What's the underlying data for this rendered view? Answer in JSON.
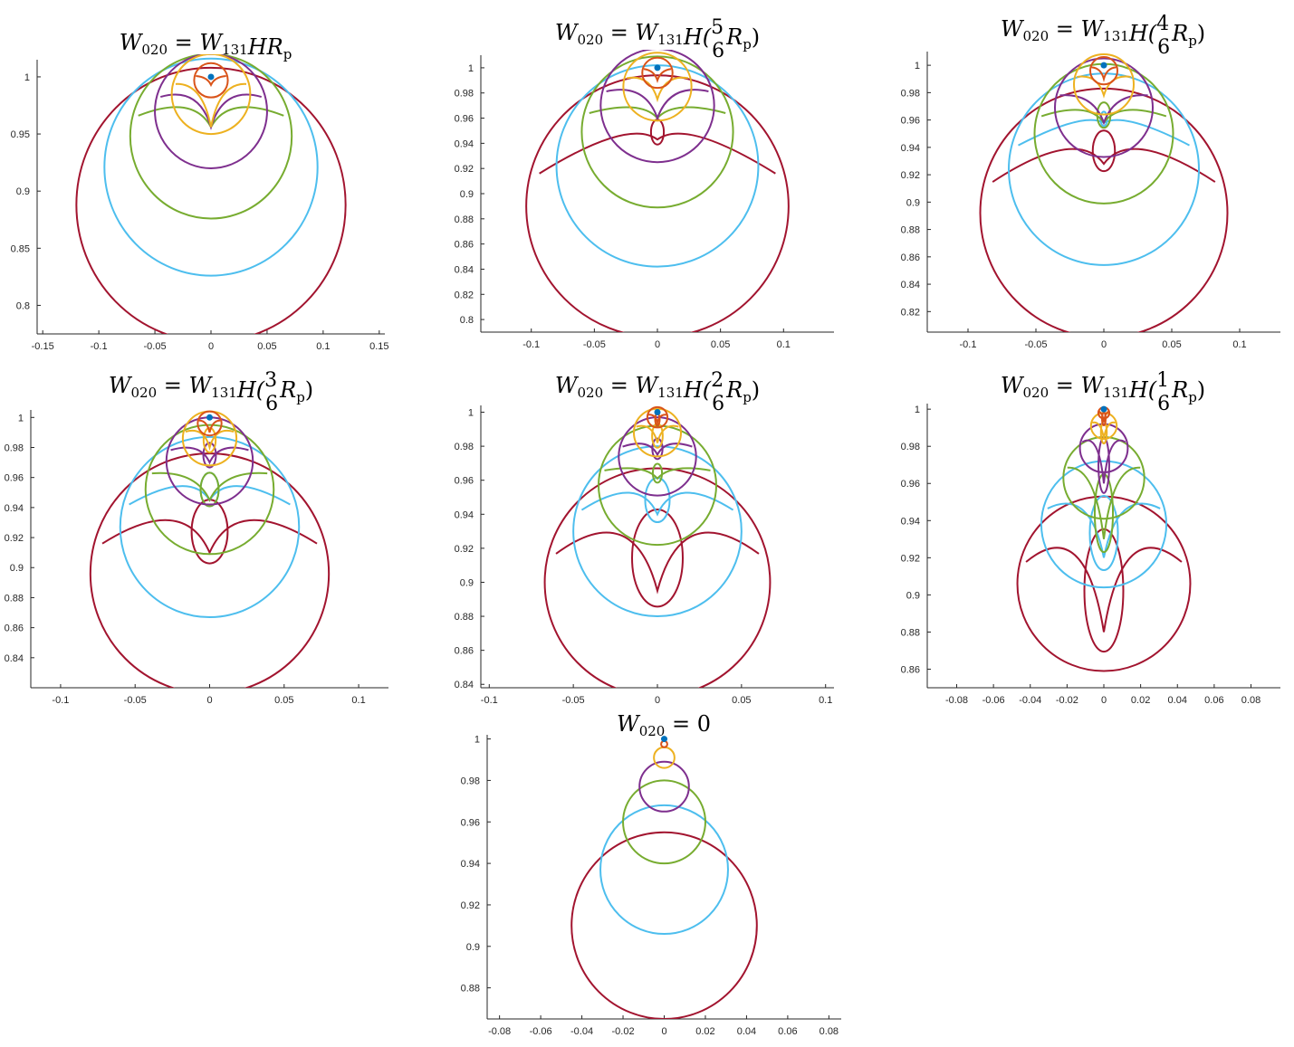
{
  "figure": {
    "colors": {
      "point": "#0072BD",
      "series_colors": [
        "#D95319",
        "#EDB120",
        "#7E2F8E",
        "#77AC30",
        "#4DBEEE",
        "#A2142F"
      ]
    }
  },
  "chart_data": [
    {
      "type": "line",
      "title": {
        "lhs": "W",
        "lhs_sub": "020",
        "rhs_text": "W",
        "rhs_sub": "131",
        "expr": "HR",
        "expr_sub": "p",
        "frac": null
      },
      "xlim": [
        -0.155,
        0.155
      ],
      "ylim": [
        0.775,
        1.015
      ],
      "xticks": [
        -0.15,
        -0.1,
        -0.05,
        0,
        0.05,
        0.1,
        0.15
      ],
      "xtick_labels": [
        "-0.15",
        "-0.1",
        "-0.05",
        "0",
        "0.05",
        "0.1",
        "0.15"
      ],
      "yticks": [
        0.8,
        0.85,
        0.9,
        0.95,
        1
      ],
      "ytick_labels": [
        "0.8",
        "0.85",
        "0.9",
        "0.95",
        "1"
      ],
      "point": [
        0,
        1
      ],
      "series": [
        {
          "cx": 0,
          "cy": 0.997,
          "r": 0.015,
          "ctop": 1.0,
          "cbot": 0.993,
          "loop": false
        },
        {
          "cx": 0,
          "cy": 0.985,
          "r": 0.035,
          "ctop": 0.995,
          "cbot": 0.956,
          "loop": false
        },
        {
          "cx": 0,
          "cy": 0.97,
          "r": 0.05,
          "ctop": 0.992,
          "cbot": 0.956,
          "loop": false
        },
        {
          "cx": 0,
          "cy": 0.948,
          "r": 0.072,
          "ctop": 0.985,
          "cbot": 0.956,
          "loop": false
        },
        {
          "cx": 0,
          "cy": 0.921,
          "r": 0.095,
          "ctop": null,
          "cbot": null,
          "loop": false
        },
        {
          "cx": 0,
          "cy": 0.888,
          "r": 0.12,
          "ctop": null,
          "cbot": null,
          "loop": false
        }
      ]
    },
    {
      "type": "line",
      "title": {
        "lhs": "W",
        "lhs_sub": "020",
        "rhs_text": "W",
        "rhs_sub": "131",
        "expr": "H(",
        "frac": [
          "5",
          "6"
        ],
        "tail": "R",
        "tail_sub": "p",
        "close": ")"
      },
      "xlim": [
        -0.14,
        0.14
      ],
      "ylim": [
        0.79,
        1.01
      ],
      "xticks": [
        -0.1,
        -0.05,
        0,
        0.05,
        0.1
      ],
      "xtick_labels": [
        "-0.1",
        "-0.05",
        "0",
        "0.05",
        "0.1"
      ],
      "yticks": [
        0.8,
        0.82,
        0.84,
        0.86,
        0.88,
        0.9,
        0.92,
        0.94,
        0.96,
        0.98,
        1
      ],
      "ytick_labels": [
        "0.8",
        "0.82",
        "0.84",
        "0.86",
        "0.88",
        "0.9",
        "0.92",
        "0.94",
        "0.96",
        "0.98",
        "1"
      ],
      "point": [
        0,
        1
      ],
      "series": [
        {
          "cx": 0,
          "cy": 0.996,
          "r": 0.012,
          "ctop": 0.998,
          "cbot": 0.99,
          "loop": false
        },
        {
          "cx": 0,
          "cy": 0.985,
          "r": 0.027,
          "ctop": 0.995,
          "cbot": 0.975,
          "loop": false
        },
        {
          "cx": 0,
          "cy": 0.97,
          "r": 0.045,
          "ctop": 0.988,
          "cbot": 0.96,
          "loop": false
        },
        {
          "cx": 0,
          "cy": 0.949,
          "r": 0.06,
          "ctop": 0.975,
          "cbot": 0.96,
          "loop": false
        },
        {
          "cx": 0,
          "cy": 0.922,
          "r": 0.08,
          "ctop": null,
          "cbot": null,
          "loop": false
        },
        {
          "cx": 0,
          "cy": 0.89,
          "r": 0.104,
          "ctop": 0.96,
          "cbot": 0.943,
          "loop": true
        }
      ]
    },
    {
      "type": "line",
      "title": {
        "lhs": "W",
        "lhs_sub": "020",
        "rhs_text": "W",
        "rhs_sub": "131",
        "expr": "H(",
        "frac": [
          "4",
          "6"
        ],
        "tail": "R",
        "tail_sub": "p",
        "close": ")"
      },
      "xlim": [
        -0.13,
        0.13
      ],
      "ylim": [
        0.805,
        1.01
      ],
      "xticks": [
        -0.1,
        -0.05,
        0,
        0.05,
        0.1
      ],
      "xtick_labels": [
        "-0.1",
        "-0.05",
        "0",
        "0.05",
        "0.1"
      ],
      "yticks": [
        0.82,
        0.84,
        0.86,
        0.88,
        0.9,
        0.92,
        0.94,
        0.96,
        0.98,
        1
      ],
      "ytick_labels": [
        "0.82",
        "0.84",
        "0.86",
        "0.88",
        "0.9",
        "0.92",
        "0.94",
        "0.96",
        "0.98",
        "1"
      ],
      "point": [
        0,
        1
      ],
      "series": [
        {
          "cx": 0,
          "cy": 0.996,
          "r": 0.01,
          "ctop": 0.998,
          "cbot": 0.99,
          "loop": false
        },
        {
          "cx": 0,
          "cy": 0.986,
          "r": 0.022,
          "ctop": 0.994,
          "cbot": 0.978,
          "loop": false
        },
        {
          "cx": 0,
          "cy": 0.969,
          "r": 0.036,
          "ctop": 0.98,
          "cbot": 0.958,
          "loop": false
        },
        {
          "cx": 0,
          "cy": 0.95,
          "r": 0.051,
          "ctop": 0.974,
          "cbot": 0.958,
          "loop": true
        },
        {
          "cx": 0,
          "cy": 0.924,
          "r": 0.07,
          "ctop": 0.966,
          "cbot": 0.958,
          "loop": true
        },
        {
          "cx": 0,
          "cy": 0.892,
          "r": 0.091,
          "ctop": 0.955,
          "cbot": 0.928,
          "loop": true
        }
      ]
    },
    {
      "type": "line",
      "title": {
        "lhs": "W",
        "lhs_sub": "020",
        "rhs_text": "W",
        "rhs_sub": "131",
        "expr": "H(",
        "frac": [
          "3",
          "6"
        ],
        "tail": "R",
        "tail_sub": "p",
        "close": ")"
      },
      "xlim": [
        -0.12,
        0.12
      ],
      "ylim": [
        0.82,
        1.005
      ],
      "xticks": [
        -0.1,
        -0.05,
        0,
        0.05,
        0.1
      ],
      "xtick_labels": [
        "-0.1",
        "-0.05",
        "0",
        "0.05",
        "0.1"
      ],
      "yticks": [
        0.84,
        0.86,
        0.88,
        0.9,
        0.92,
        0.94,
        0.96,
        0.98,
        1
      ],
      "ytick_labels": [
        "0.84",
        "0.86",
        "0.88",
        "0.9",
        "0.92",
        "0.94",
        "0.96",
        "0.98",
        "1"
      ],
      "point": [
        0,
        1
      ],
      "series": [
        {
          "cx": 0,
          "cy": 0.996,
          "r": 0.008,
          "ctop": 0.998,
          "cbot": 0.99,
          "loop": false
        },
        {
          "cx": 0,
          "cy": 0.986,
          "r": 0.018,
          "ctop": 0.994,
          "cbot": 0.98,
          "loop": true
        },
        {
          "cx": 0,
          "cy": 0.971,
          "r": 0.029,
          "ctop": 0.984,
          "cbot": 0.97,
          "loop": true
        },
        {
          "cx": 0,
          "cy": 0.952,
          "r": 0.043,
          "ctop": 0.965,
          "cbot": 0.945,
          "loop": true
        },
        {
          "cx": 0,
          "cy": 0.927,
          "r": 0.06,
          "ctop": 0.965,
          "cbot": 0.945,
          "loop": true
        },
        {
          "cx": 0,
          "cy": 0.896,
          "r": 0.08,
          "ctop": 0.95,
          "cbot": 0.91,
          "loop": true
        }
      ]
    },
    {
      "type": "line",
      "title": {
        "lhs": "W",
        "lhs_sub": "020",
        "rhs_text": "W",
        "rhs_sub": "131",
        "expr": "H(",
        "frac": [
          "2",
          "6"
        ],
        "tail": "R",
        "tail_sub": "p",
        "close": ")"
      },
      "xlim": [
        -0.105,
        0.105
      ],
      "ylim": [
        0.838,
        1.004
      ],
      "xticks": [
        -0.1,
        -0.05,
        0,
        0.05,
        0.1
      ],
      "xtick_labels": [
        "-0.1",
        "-0.05",
        "0",
        "0.05",
        "0.1"
      ],
      "yticks": [
        0.84,
        0.86,
        0.88,
        0.9,
        0.92,
        0.94,
        0.96,
        0.98,
        1
      ],
      "ytick_labels": [
        "0.84",
        "0.86",
        "0.88",
        "0.9",
        "0.92",
        "0.94",
        "0.96",
        "0.98",
        "1"
      ],
      "point": [
        0,
        1
      ],
      "series": [
        {
          "cx": 0,
          "cy": 0.997,
          "r": 0.006,
          "ctop": 0.999,
          "cbot": 0.994,
          "loop": true
        },
        {
          "cx": 0,
          "cy": 0.988,
          "r": 0.014,
          "ctop": 0.994,
          "cbot": 0.982,
          "loop": true
        },
        {
          "cx": 0,
          "cy": 0.974,
          "r": 0.023,
          "ctop": 0.985,
          "cbot": 0.975,
          "loop": true
        },
        {
          "cx": 0,
          "cy": 0.957,
          "r": 0.035,
          "ctop": 0.97,
          "cbot": 0.961,
          "loop": true
        },
        {
          "cx": 0,
          "cy": 0.93,
          "r": 0.05,
          "ctop": 0.964,
          "cbot": 0.94,
          "loop": true
        },
        {
          "cx": 0,
          "cy": 0.9,
          "r": 0.067,
          "ctop": 0.95,
          "cbot": 0.895,
          "loop": true
        }
      ]
    },
    {
      "type": "line",
      "title": {
        "lhs": "W",
        "lhs_sub": "020",
        "rhs_text": "W",
        "rhs_sub": "131",
        "expr": "H(",
        "frac": [
          "1",
          "6"
        ],
        "tail": "R",
        "tail_sub": "p",
        "close": ")"
      },
      "xlim": [
        -0.096,
        0.096
      ],
      "ylim": [
        0.85,
        1.003
      ],
      "xticks": [
        -0.08,
        -0.06,
        -0.04,
        -0.02,
        0,
        0.02,
        0.04,
        0.06,
        0.08
      ],
      "xtick_labels": [
        "-0.08",
        "-0.06",
        "-0.04",
        "-0.02",
        "0",
        "0.02",
        "0.04",
        "0.06",
        "0.08"
      ],
      "yticks": [
        0.86,
        0.88,
        0.9,
        0.92,
        0.94,
        0.96,
        0.98,
        1
      ],
      "ytick_labels": [
        "0.86",
        "0.88",
        "0.9",
        "0.92",
        "0.94",
        "0.96",
        "0.98",
        "1"
      ],
      "point": [
        0,
        1
      ],
      "series": [
        {
          "cx": 0,
          "cy": 0.998,
          "r": 0.003,
          "ctop": 0.998,
          "cbot": 0.993,
          "loop": true
        },
        {
          "cx": 0,
          "cy": 0.991,
          "r": 0.007,
          "ctop": 0.994,
          "cbot": 0.984,
          "loop": true
        },
        {
          "cx": 0,
          "cy": 0.979,
          "r": 0.013,
          "ctop": 0.988,
          "cbot": 0.96,
          "loop": true
        },
        {
          "cx": 0,
          "cy": 0.963,
          "r": 0.022,
          "ctop": 0.97,
          "cbot": 0.93,
          "loop": true
        },
        {
          "cx": 0,
          "cy": 0.938,
          "r": 0.034,
          "ctop": 0.958,
          "cbot": 0.92,
          "loop": true
        },
        {
          "cx": 0,
          "cy": 0.906,
          "r": 0.047,
          "ctop": 0.944,
          "cbot": 0.88,
          "loop": true
        }
      ]
    },
    {
      "type": "line",
      "title": {
        "lhs": "W",
        "lhs_sub": "020",
        "rhs_text": "0",
        "rhs_sub": "",
        "expr": "",
        "frac": null
      },
      "xlim": [
        -0.086,
        0.086
      ],
      "ylim": [
        0.865,
        1.002
      ],
      "xticks": [
        -0.08,
        -0.06,
        -0.04,
        -0.02,
        0,
        0.02,
        0.04,
        0.06,
        0.08
      ],
      "xtick_labels": [
        "-0.08",
        "-0.06",
        "-0.04",
        "-0.02",
        "0",
        "0.02",
        "0.04",
        "0.06",
        "0.08"
      ],
      "yticks": [
        0.88,
        0.9,
        0.92,
        0.94,
        0.96,
        0.98,
        1
      ],
      "ytick_labels": [
        "0.88",
        "0.9",
        "0.92",
        "0.94",
        "0.96",
        "0.98",
        "1"
      ],
      "point": [
        0,
        1
      ],
      "series": [
        {
          "cx": 0,
          "cy": 0.9975,
          "r": 0.0015,
          "ctop": null,
          "cbot": null,
          "loop": false
        },
        {
          "cx": 0,
          "cy": 0.991,
          "r": 0.005,
          "ctop": null,
          "cbot": null,
          "loop": false
        },
        {
          "cx": 0,
          "cy": 0.977,
          "r": 0.012,
          "ctop": null,
          "cbot": null,
          "loop": false
        },
        {
          "cx": 0,
          "cy": 0.96,
          "r": 0.02,
          "ctop": null,
          "cbot": null,
          "loop": false
        },
        {
          "cx": 0,
          "cy": 0.937,
          "r": 0.031,
          "ctop": null,
          "cbot": null,
          "loop": false
        },
        {
          "cx": 0,
          "cy": 0.91,
          "r": 0.045,
          "ctop": null,
          "cbot": null,
          "loop": false
        }
      ]
    }
  ]
}
